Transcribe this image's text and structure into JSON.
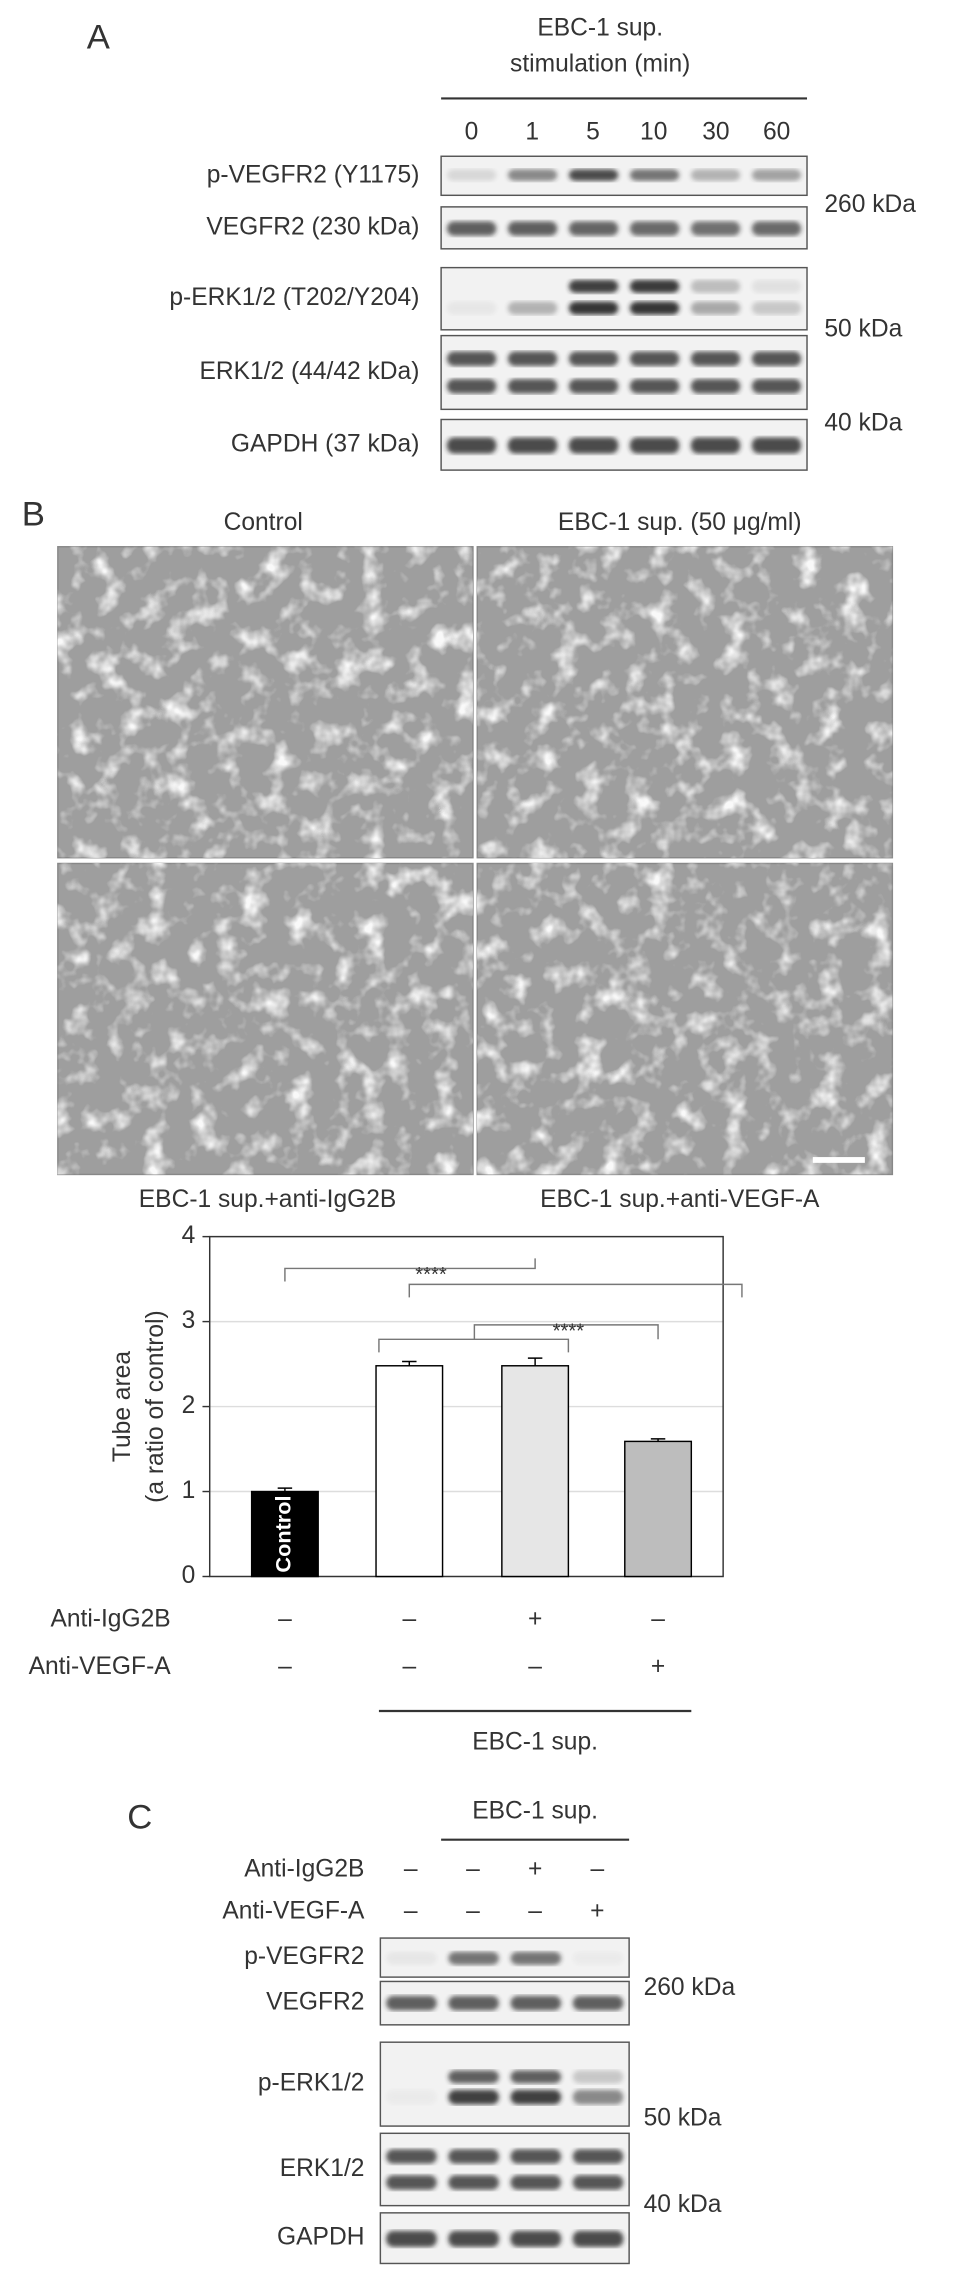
{
  "panel_a": {
    "label": "A",
    "header": [
      "EBC-1 sup.",
      "stimulation (min)"
    ],
    "lanes": [
      "0",
      "1",
      "5",
      "10",
      "30",
      "60"
    ],
    "rows": [
      "p-VEGFR2 (Y1175)",
      "VEGFR2 (230 kDa)",
      "p-ERK1/2 (T202/Y204)",
      "ERK1/2 (44/42 kDa)",
      "GAPDH (37 kDa)"
    ],
    "markers": [
      "260 kDa",
      "50 kDa",
      "40 kDa"
    ]
  },
  "panel_b": {
    "label": "B",
    "images": [
      "Control",
      "EBC-1 sup. (50 μg/ml)",
      "EBC-1 sup.+anti-IgG2B",
      "EBC-1 sup.+anti-VEGF-A"
    ],
    "treatments": [
      {
        "label": "Anti-IgG2B",
        "signs": [
          "–",
          "–",
          "+",
          "–"
        ]
      },
      {
        "label": "Anti-VEGF-A",
        "signs": [
          "–",
          "–",
          "–",
          "+"
        ]
      }
    ],
    "group": "EBC-1 sup."
  },
  "chart_data": {
    "type": "bar",
    "y_label": [
      "Tube area",
      "(a ratio of control)"
    ],
    "categories": [
      "Control",
      null,
      null,
      null
    ],
    "values": [
      1.0,
      2.48,
      2.48,
      1.59
    ],
    "errors": [
      0.04,
      0.05,
      0.09,
      0.03
    ],
    "colors": [
      "#000000",
      "#ffffff",
      "#e6e6e6",
      "#bdbdbd"
    ],
    "ylim": [
      0,
      4
    ],
    "yticks": [
      0,
      1,
      2,
      3,
      4
    ],
    "grid": true,
    "annotations": [
      "****",
      "****"
    ]
  },
  "panel_c": {
    "label": "C",
    "group": "EBC-1 sup.",
    "treatments": [
      {
        "label": "Anti-IgG2B",
        "signs": [
          "–",
          "–",
          "+",
          "–"
        ]
      },
      {
        "label": "Anti-VEGF-A",
        "signs": [
          "–",
          "–",
          "–",
          "+"
        ]
      }
    ],
    "rows": [
      "p-VEGFR2",
      "VEGFR2",
      "p-ERK1/2",
      "ERK1/2",
      "GAPDH"
    ],
    "markers": [
      "260 kDa",
      "50 kDa",
      "40 kDa"
    ]
  }
}
